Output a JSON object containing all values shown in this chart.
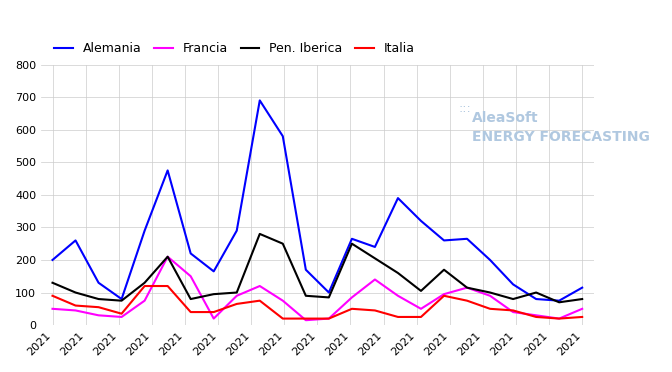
{
  "title": "",
  "series": {
    "Alemania": [
      200,
      260,
      130,
      80,
      290,
      475,
      220,
      165,
      290,
      690,
      580,
      170,
      100,
      265,
      240,
      390,
      320,
      260,
      265,
      200,
      125,
      80,
      75,
      115
    ],
    "Francia": [
      50,
      45,
      30,
      25,
      75,
      210,
      150,
      20,
      90,
      120,
      75,
      15,
      20,
      85,
      140,
      90,
      50,
      95,
      115,
      90,
      40,
      30,
      20,
      50
    ],
    "Pen. Iberica": [
      130,
      100,
      80,
      75,
      130,
      210,
      80,
      95,
      100,
      280,
      250,
      90,
      85,
      250,
      205,
      160,
      105,
      170,
      115,
      100,
      80,
      100,
      70,
      80
    ],
    "Italia": [
      90,
      60,
      55,
      35,
      120,
      120,
      40,
      40,
      65,
      75,
      20,
      20,
      20,
      50,
      45,
      25,
      25,
      90,
      75,
      50,
      45,
      25,
      20,
      25
    ]
  },
  "colors": {
    "Alemania": "#0000ff",
    "Francia": "#ff00ff",
    "Pen. Iberica": "#000000",
    "Italia": "#ff0000"
  },
  "ylim": [
    0,
    800
  ],
  "yticks": [
    0,
    100,
    200,
    300,
    400,
    500,
    600,
    700,
    800
  ],
  "n_points": 24,
  "xlabel": "2021",
  "watermark_text": "AleaSoft\nENERGY FORECASTING",
  "watermark_color": "#b0c8e0",
  "line_width": 1.5,
  "background_color": "#ffffff",
  "grid_color": "#cccccc",
  "legend_order": [
    "Alemania",
    "Francia",
    "Pen. Iberica",
    "Italia"
  ]
}
